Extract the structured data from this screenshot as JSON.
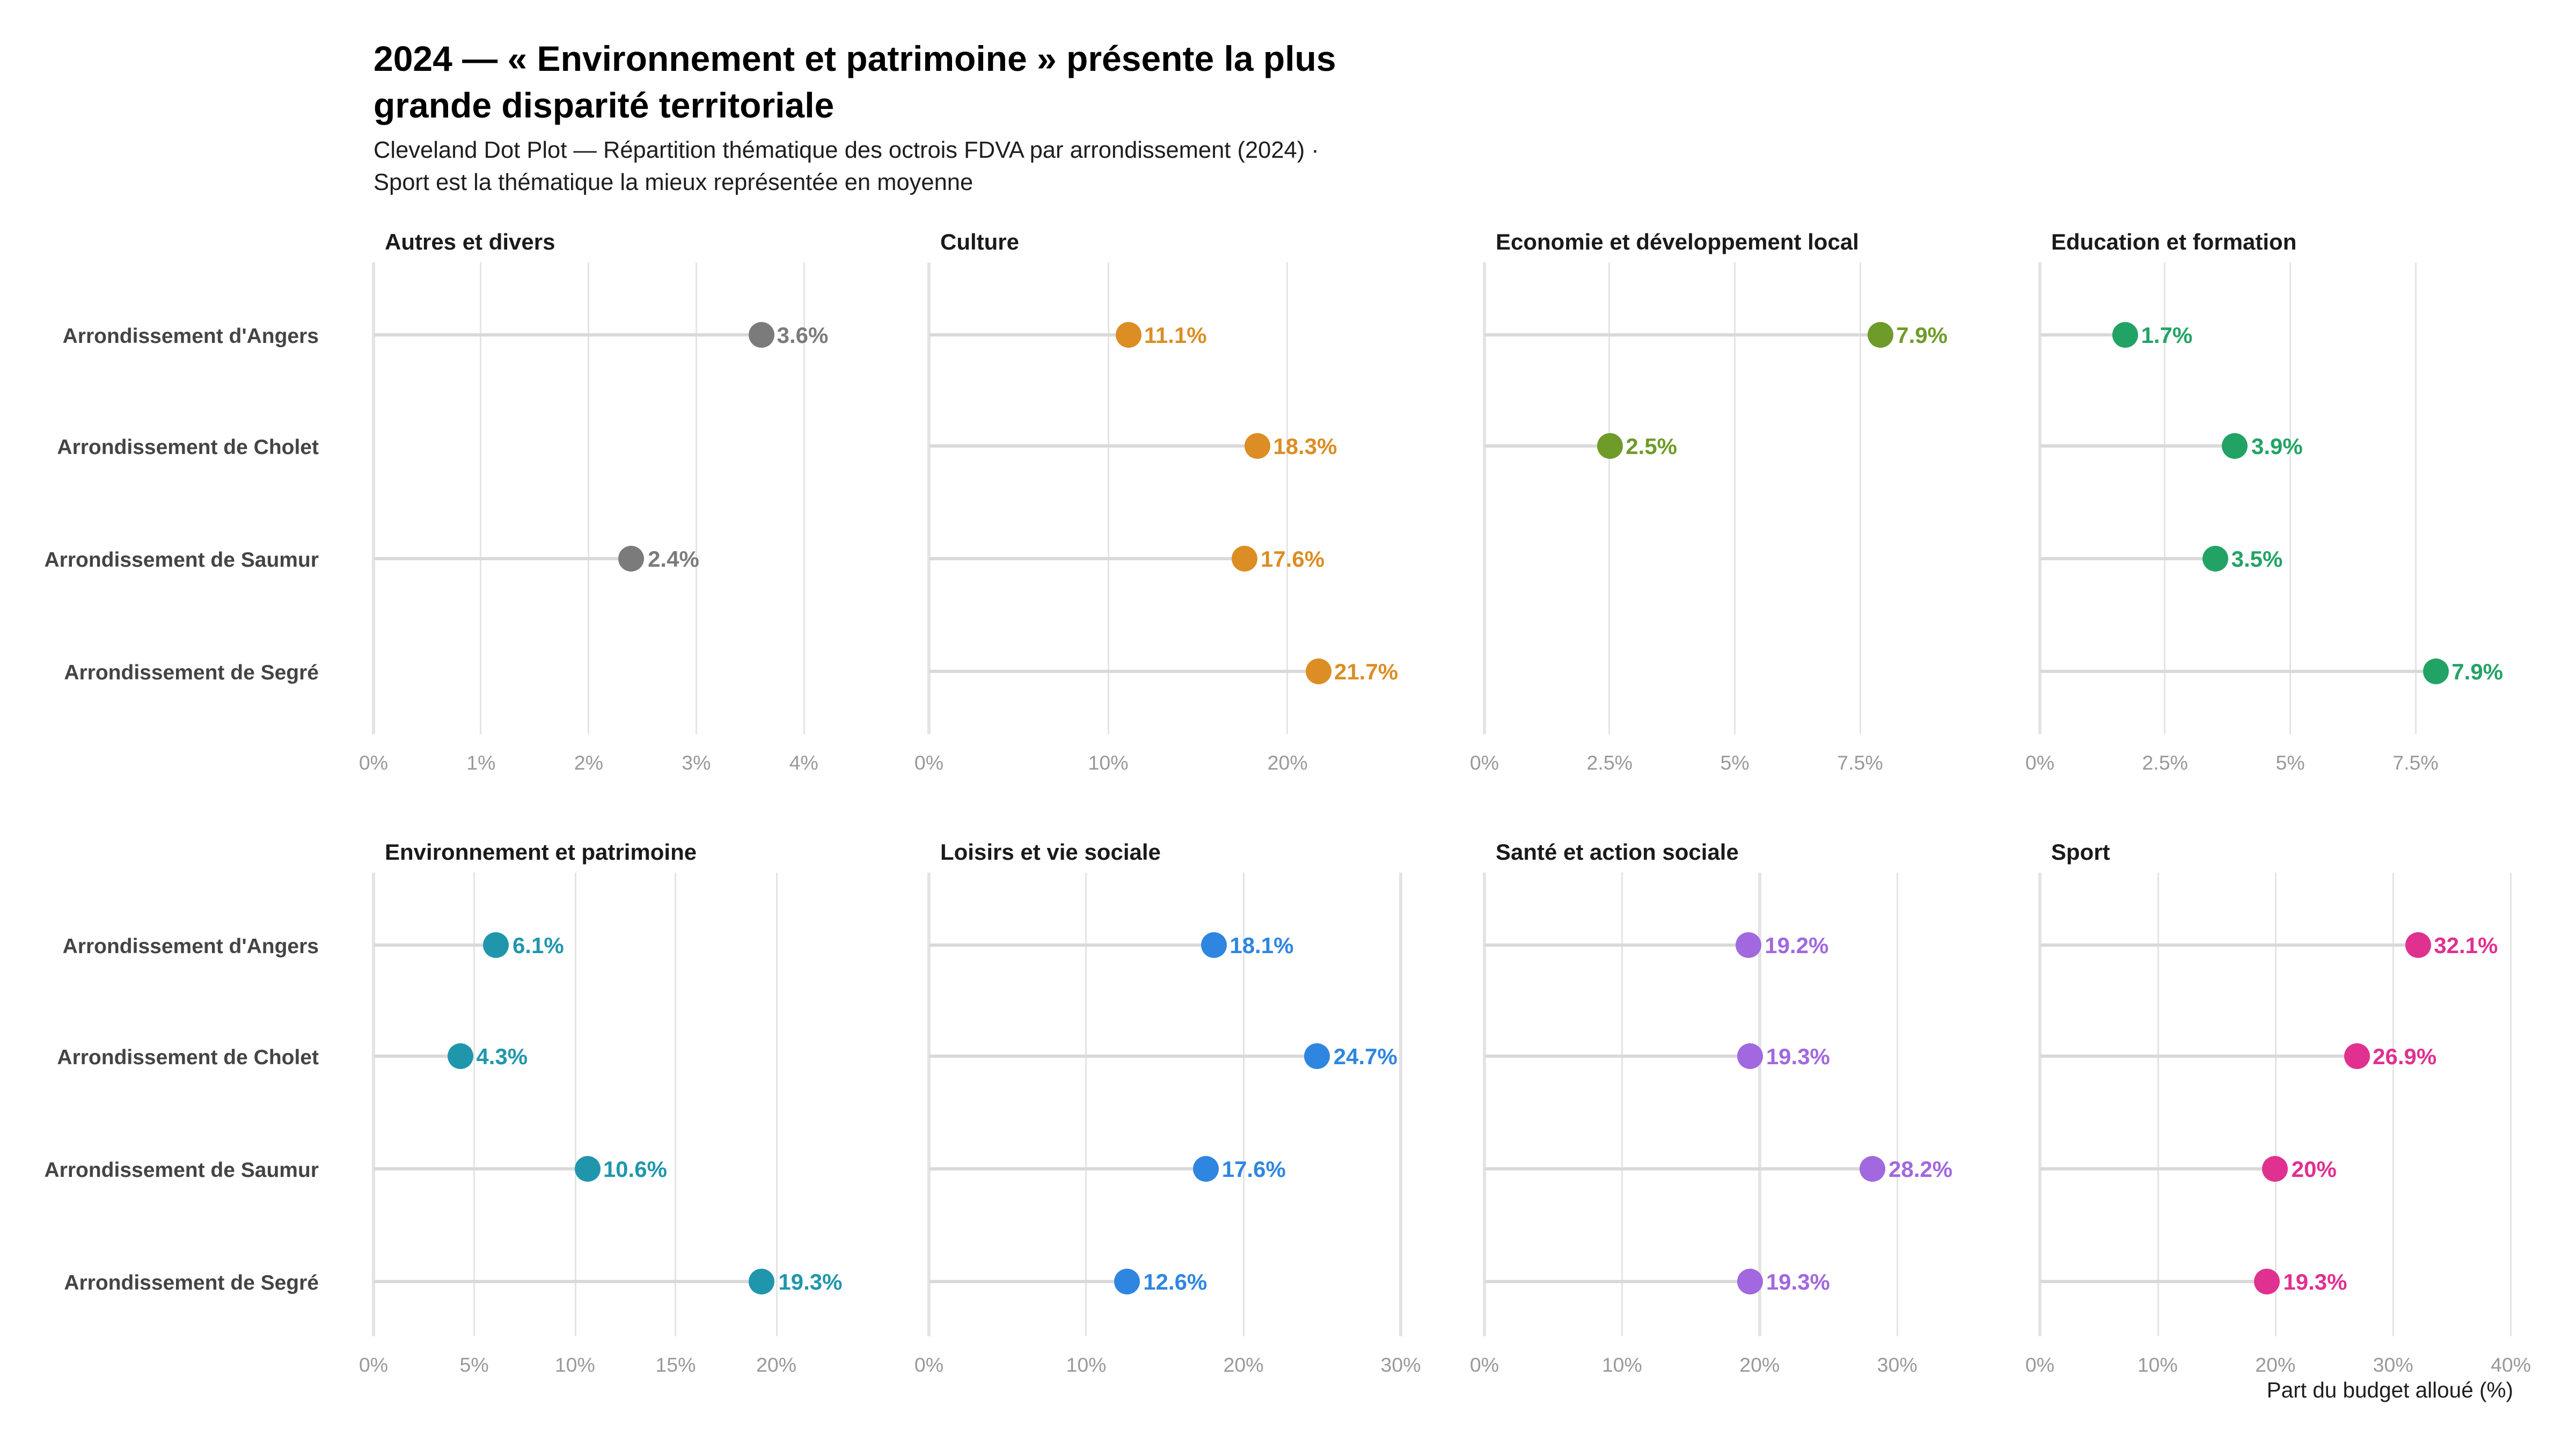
{
  "header": {
    "title": "2024 — « Environnement et patrimoine » présente la plus grande disparité territoriale",
    "subtitle": "Cleveland Dot Plot — Répartition thématique des octrois FDVA par arrondissement (2024) · Sport est la thématique la mieux représentée en moyenne"
  },
  "caption": "Part du budget alloué (%)",
  "chart_data": {
    "type": "scatter",
    "variant": "cleveland-dot-plot-faceted-lollipop",
    "title": "2024 — « Environnement et patrimoine » présente la plus grande disparité territoriale",
    "subtitle": "Cleveland Dot Plot — Répartition thématique des octrois FDVA par arrondissement (2024) · Sport est la thématique la mieux représentée en moyenne",
    "xlabel": "Part du budget alloué (%)",
    "grid": "vertical-only",
    "legend_position": "none",
    "panel_background": "#ffffff",
    "gridline_color": "#e4e4e4",
    "stem_color": "#d9d9d9",
    "categories": [
      "Arrondissement d'Angers",
      "Arrondissement de Cholet",
      "Arrondissement de Saumur",
      "Arrondissement de Segré"
    ],
    "facets": [
      {
        "label": "Autres et divers",
        "color": "#7b7b7b",
        "xlim": [
          0,
          4.4
        ],
        "ticks": [
          {
            "v": 0,
            "t": "0%"
          },
          {
            "v": 1,
            "t": "1%"
          },
          {
            "v": 2,
            "t": "2%"
          },
          {
            "v": 3,
            "t": "3%"
          },
          {
            "v": 4,
            "t": "4%"
          }
        ],
        "values": [
          3.6,
          null,
          2.4,
          null
        ],
        "value_labels": [
          "3.6%",
          null,
          "2.4%",
          null
        ]
      },
      {
        "label": "Culture",
        "color": "#dc8d24",
        "xlim": [
          0,
          26.4
        ],
        "ticks": [
          {
            "v": 0,
            "t": "0%"
          },
          {
            "v": 10,
            "t": "10%"
          },
          {
            "v": 20,
            "t": "20%"
          }
        ],
        "values": [
          11.1,
          18.3,
          17.6,
          21.7
        ],
        "value_labels": [
          "11.1%",
          "18.3%",
          "17.6%",
          "21.7%"
        ]
      },
      {
        "label": "Economie et développement local",
        "color": "#6e9b29",
        "xlim": [
          0,
          9.45
        ],
        "ticks": [
          {
            "v": 0,
            "t": "0%"
          },
          {
            "v": 2.5,
            "t": "2.5%"
          },
          {
            "v": 5,
            "t": "5%"
          },
          {
            "v": 7.5,
            "t": "7.5%"
          }
        ],
        "values": [
          7.9,
          2.5,
          null,
          null
        ],
        "value_labels": [
          "7.9%",
          "2.5%",
          null,
          null
        ]
      },
      {
        "label": "Education et formation",
        "color": "#22a365",
        "xlim": [
          0,
          9.45
        ],
        "ticks": [
          {
            "v": 0,
            "t": "0%"
          },
          {
            "v": 2.5,
            "t": "2.5%"
          },
          {
            "v": 5,
            "t": "5%"
          },
          {
            "v": 7.5,
            "t": "7.5%"
          }
        ],
        "values": [
          1.7,
          3.9,
          3.5,
          7.9
        ],
        "value_labels": [
          "1.7%",
          "3.9%",
          "3.5%",
          "7.9%"
        ]
      },
      {
        "label": "Environnement et patrimoine",
        "color": "#2096ad",
        "xlim": [
          0,
          23.5
        ],
        "ticks": [
          {
            "v": 0,
            "t": "0%"
          },
          {
            "v": 5,
            "t": "5%"
          },
          {
            "v": 10,
            "t": "10%"
          },
          {
            "v": 15,
            "t": "15%"
          },
          {
            "v": 20,
            "t": "20%"
          }
        ],
        "values": [
          6.1,
          4.3,
          10.6,
          19.3
        ],
        "value_labels": [
          "6.1%",
          "4.3%",
          "10.6%",
          "19.3%"
        ]
      },
      {
        "label": "Loisirs et vie sociale",
        "color": "#2e86e0",
        "xlim": [
          0,
          30.1
        ],
        "ticks": [
          {
            "v": 0,
            "t": "0%"
          },
          {
            "v": 10,
            "t": "10%"
          },
          {
            "v": 20,
            "t": "20%"
          },
          {
            "v": 30,
            "t": "30%"
          }
        ],
        "values": [
          18.1,
          24.7,
          17.6,
          12.6
        ],
        "value_labels": [
          "18.1%",
          "24.7%",
          "17.6%",
          "12.6%"
        ]
      },
      {
        "label": "Santé et action sociale",
        "color": "#a168df",
        "xlim": [
          0,
          34.4
        ],
        "ticks": [
          {
            "v": 0,
            "t": "0%"
          },
          {
            "v": 10,
            "t": "10%"
          },
          {
            "v": 20,
            "t": "20%"
          },
          {
            "v": 30,
            "t": "30%"
          }
        ],
        "values": [
          19.2,
          19.3,
          28.2,
          19.3
        ],
        "value_labels": [
          "19.2%",
          "19.3%",
          "28.2%",
          "19.3%"
        ]
      },
      {
        "label": "Sport",
        "color": "#e03090",
        "xlim": [
          0,
          40.2
        ],
        "ticks": [
          {
            "v": 0,
            "t": "0%"
          },
          {
            "v": 10,
            "t": "10%"
          },
          {
            "v": 20,
            "t": "20%"
          },
          {
            "v": 30,
            "t": "30%"
          },
          {
            "v": 40,
            "t": "40%"
          }
        ],
        "values": [
          32.1,
          26.9,
          20,
          19.3
        ],
        "value_labels": [
          "32.1%",
          "26.9%",
          "20%",
          "19.3%"
        ]
      }
    ]
  }
}
